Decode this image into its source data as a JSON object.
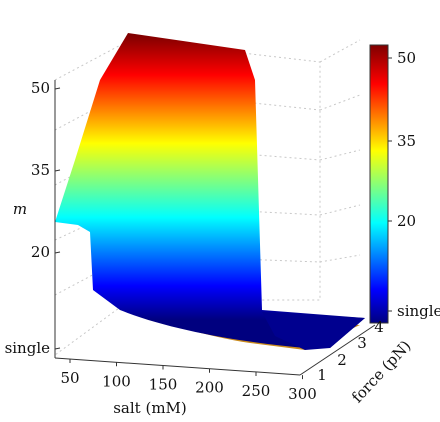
{
  "chart_data": {
    "type": "surface3d",
    "zlabel": "m",
    "xlabel": "salt (mM)",
    "ylabel": "force (pN)",
    "x_ticks": [
      "50",
      "100",
      "150",
      "200",
      "250",
      "300"
    ],
    "y_ticks": [
      "1",
      "2",
      "3",
      "4"
    ],
    "z_ticks": [
      "single",
      "20",
      "35",
      "50"
    ],
    "colorbar_ticks": [
      "single",
      "20",
      "35",
      "50"
    ],
    "colormap": "jet",
    "zlim": [
      0,
      55
    ],
    "grid": true,
    "series": [
      {
        "force": 1,
        "salt": [
          40,
          100,
          150,
          200,
          250,
          300
        ],
        "m": [
          26,
          48,
          52,
          53,
          53,
          53
        ]
      },
      {
        "force": 2,
        "salt": [
          40,
          100,
          150,
          200,
          250,
          300
        ],
        "m": [
          0,
          0,
          0,
          0,
          0,
          0
        ]
      },
      {
        "force": 3,
        "salt": [
          40,
          100,
          150,
          200,
          250,
          300
        ],
        "m": [
          0,
          0,
          0,
          0,
          0,
          0
        ]
      },
      {
        "force": 4,
        "salt": [
          40,
          100,
          150,
          200,
          250,
          300
        ],
        "m": [
          0,
          0,
          0,
          0,
          0,
          0
        ]
      }
    ]
  }
}
